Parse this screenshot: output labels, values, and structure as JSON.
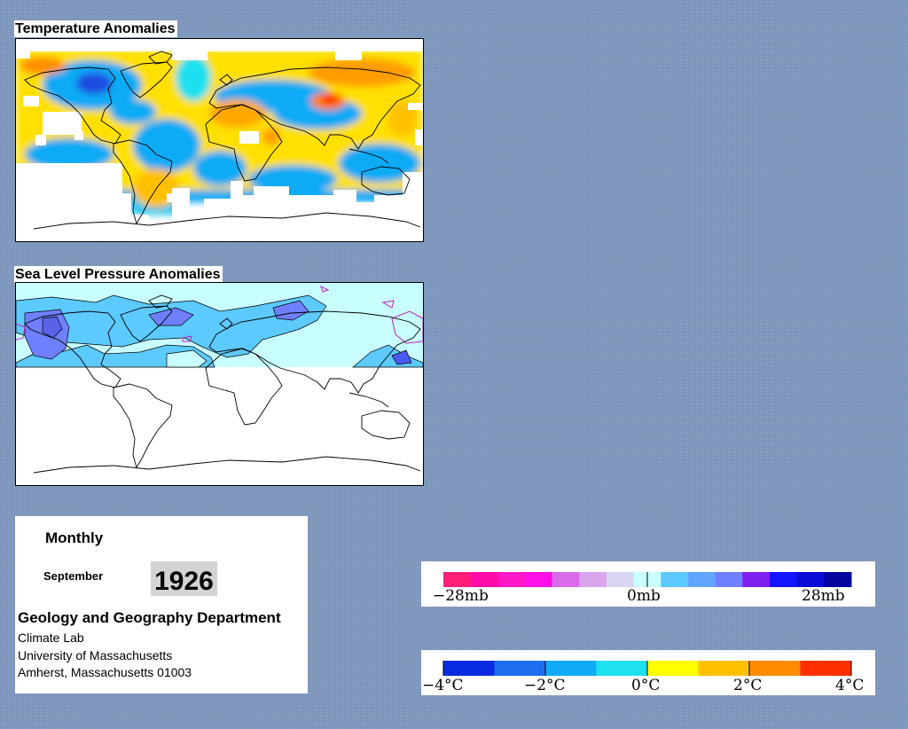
{
  "temperature_map": {
    "title": "Temperature Anomalies"
  },
  "pressure_map": {
    "title": "Sea Level Pressure Anomalies"
  },
  "info": {
    "period": "Monthly",
    "month": "September",
    "year": "1926",
    "department": "Geology and Geography Department",
    "lines": [
      "Climate Lab",
      "University of Massachusetts",
      "Amherst, Massachusetts 01003"
    ]
  },
  "pressure_legend": {
    "labels": [
      "−28mb",
      "0mb",
      "28mb"
    ],
    "colors": [
      "#ff1f7a",
      "#ff0aa8",
      "#ff18c8",
      "#ff10e8",
      "#d96ae8",
      "#d9a6ee",
      "#d8d6f3",
      "#c8ffff",
      "#5ccaff",
      "#62a5ff",
      "#6f7fff",
      "#7e1ff0",
      "#1414ff",
      "#0a0ad8",
      "#0505a0"
    ]
  },
  "temperature_legend": {
    "labels": [
      "−4°C",
      "−2°C",
      "0°C",
      "2°C",
      "4°C"
    ],
    "colors": [
      "#0a2ce0",
      "#1e6cf0",
      "#10aaf5",
      "#1fe0f0",
      "#ffff00",
      "#ffc000",
      "#ff8c00",
      "#ff3000"
    ]
  }
}
